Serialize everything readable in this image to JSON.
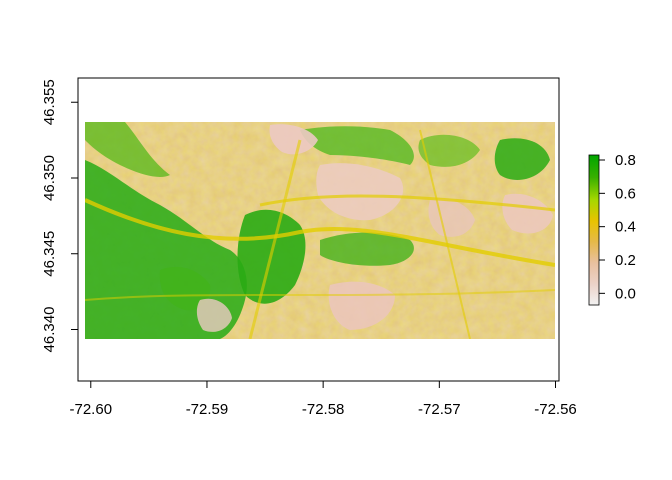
{
  "plot": {
    "x_axis": {
      "tick_labels": [
        "-72.60",
        "-72.59",
        "-72.58",
        "-72.57",
        "-72.56"
      ],
      "tick_values": [
        -72.6,
        -72.59,
        -72.58,
        -72.57,
        -72.56
      ],
      "range": [
        -72.6011,
        -72.5597
      ]
    },
    "y_axis": {
      "tick_labels": [
        "46.340",
        "46.345",
        "46.350",
        "46.355"
      ],
      "tick_values": [
        46.34,
        46.345,
        46.35,
        46.355
      ],
      "range": [
        46.3366,
        46.3566
      ]
    },
    "raster_extent": {
      "x": [
        -72.6005,
        -72.56
      ],
      "y": [
        46.3396,
        46.3526
      ]
    },
    "legend": {
      "tick_labels": [
        "0.8",
        "0.6",
        "0.4",
        "0.2",
        "0.0"
      ],
      "tick_values": [
        0.8,
        0.6,
        0.4,
        0.2,
        0.0
      ],
      "range": [
        -0.07,
        0.83
      ],
      "placement": "right",
      "colors": [
        "#f2f2f2",
        "#e9c09f",
        "#e5b94a",
        "#e8c300",
        "#a6d800",
        "#39b000",
        "#00a600"
      ]
    }
  }
}
